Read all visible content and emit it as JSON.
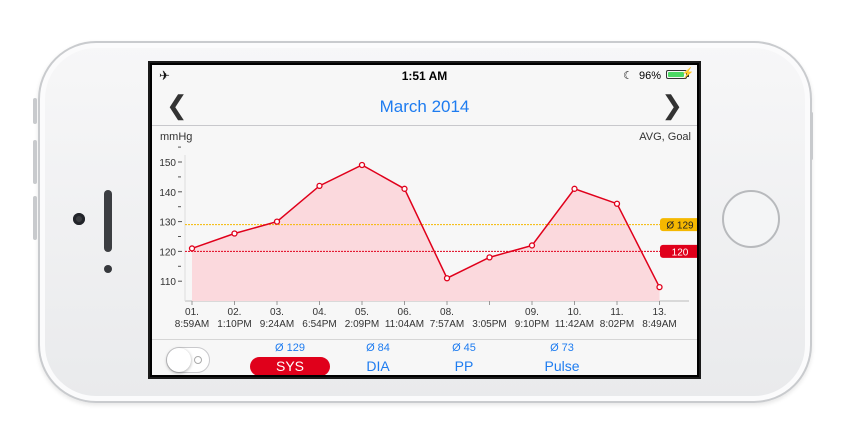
{
  "statusbar": {
    "airplane_icon": "airplane-icon",
    "time": "1:51 AM",
    "do_not_disturb_icon": "moon-icon",
    "battery_percent": "96%",
    "battery_level": 0.96,
    "charging_icon": "bolt-icon"
  },
  "navbar": {
    "back_icon": "chevron-left-icon",
    "title": "March 2014",
    "forward_icon": "chevron-right-icon"
  },
  "chart_header": {
    "unit": "mmHg",
    "right_label": "AVG, Goal"
  },
  "chart_data": {
    "type": "area",
    "ylabel": "mmHg",
    "ylim": [
      100,
      152
    ],
    "yticks": [
      110,
      120,
      130,
      140,
      150
    ],
    "ytick_labels": [
      "110",
      "120",
      "130",
      "140",
      "150"
    ],
    "x_labels": [
      {
        "day": "01.",
        "time": "8:59AM"
      },
      {
        "day": "02.",
        "time": "1:10PM"
      },
      {
        "day": "03.",
        "time": "9:24AM"
      },
      {
        "day": "04.",
        "time": "6:54PM"
      },
      {
        "day": "05.",
        "time": "2:09PM"
      },
      {
        "day": "06.",
        "time": "11:04AM"
      },
      {
        "day": "08.",
        "time": "7:57AM"
      },
      {
        "day": "",
        "time": "3:05PM"
      },
      {
        "day": "09.",
        "time": "9:10PM"
      },
      {
        "day": "10.",
        "time": "11:42AM"
      },
      {
        "day": "11.",
        "time": "8:02PM"
      },
      {
        "day": "13.",
        "time": "8:49AM"
      }
    ],
    "series": [
      {
        "values": [
          121,
          126,
          130,
          142,
          149,
          141,
          111,
          118,
          122,
          141,
          136,
          108
        ],
        "color": "#e0001b",
        "fill": "#fbd9dd"
      }
    ],
    "average": {
      "value": 129,
      "label": "Ø 129",
      "color": "#f5b800"
    },
    "goal": {
      "value": 120,
      "label": "120",
      "color": "#e0001b"
    }
  },
  "tabs": [
    {
      "avg": "Ø 129",
      "label": "SYS",
      "active": true
    },
    {
      "avg": "Ø 84",
      "label": "DIA",
      "active": false
    },
    {
      "avg": "Ø 45",
      "label": "PP",
      "active": false
    },
    {
      "avg": "Ø 73",
      "label": "Pulse",
      "active": false
    }
  ],
  "colors": {
    "accent": "#1e7cf0",
    "alert": "#e0001b",
    "average": "#f5b800"
  }
}
